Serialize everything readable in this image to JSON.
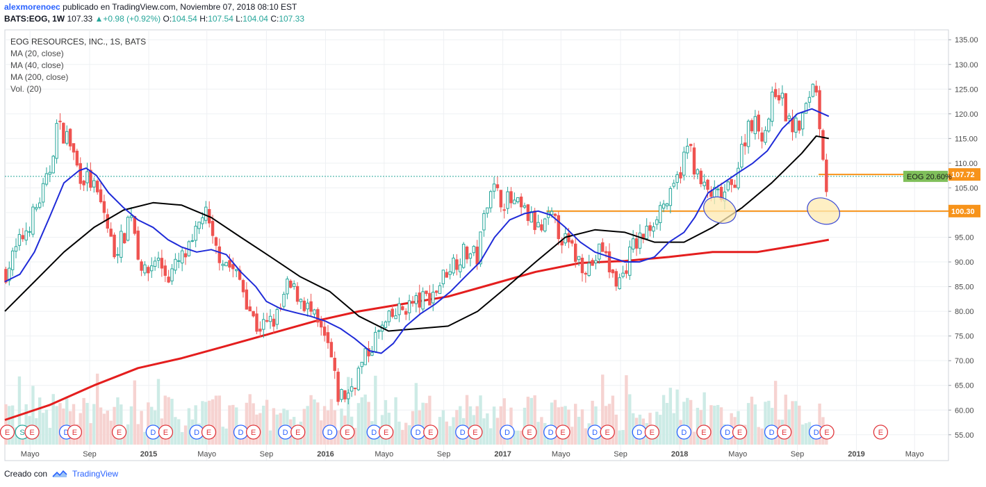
{
  "header": {
    "author": "alexmorenoec",
    "published": "publicado en TradingView.com, Noviembre 07, 2018 08:10 EST",
    "symbol": "BATS:EOG, 1W",
    "last": "107.33",
    "change": "+0.98 (+0.92%)",
    "o_label": "O:",
    "o": "104.54",
    "h_label": "H:",
    "h": "107.54",
    "l_label": "L:",
    "l": "104.04",
    "c_label": "C:",
    "c": "107.33"
  },
  "legend": {
    "title": "EOG RESOURCES, INC., 1S, BATS",
    "ma20": "MA (20, close)",
    "ma40": "MA (40, close)",
    "ma200": "MA (200, close)",
    "vol": "Vol. (20)"
  },
  "footer": {
    "created": "Creado con",
    "brand": "TradingView"
  },
  "colors": {
    "up": "#26a69a",
    "down": "#ef5350",
    "ma20": "#1f2bd8",
    "ma40": "#000000",
    "ma200": "#e41e1e",
    "level": "#f7931a",
    "ellipse_fill": "#fde9b0",
    "ellipse_stroke": "#3c4bd6",
    "vol_up": "#cdebe6",
    "vol_down": "#f6d3d1",
    "event_e": "#e0353b",
    "event_d": "#2962ff",
    "event_s": "#26a69a"
  },
  "chart_data": {
    "type": "candlestick",
    "title": "EOG RESOURCES, INC., 1S, BATS",
    "y_range": [
      53,
      137
    ],
    "x_range": [
      "2014-03-10",
      "2019-07-10"
    ],
    "y_ticks": [
      55,
      60,
      65,
      70,
      75,
      80,
      85,
      90,
      95,
      100,
      105,
      110,
      115,
      120,
      125,
      130,
      135
    ],
    "x_ticks": [
      {
        "label": "Mayo",
        "date": "2014-05-01"
      },
      {
        "label": "Sep",
        "date": "2014-09-01"
      },
      {
        "label": "2015",
        "date": "2015-01-01"
      },
      {
        "label": "Mayo",
        "date": "2015-05-01"
      },
      {
        "label": "Sep",
        "date": "2015-09-01"
      },
      {
        "label": "2016",
        "date": "2016-01-01"
      },
      {
        "label": "Mayo",
        "date": "2016-05-01"
      },
      {
        "label": "Sep",
        "date": "2016-09-01"
      },
      {
        "label": "2017",
        "date": "2017-01-01"
      },
      {
        "label": "Mayo",
        "date": "2017-05-01"
      },
      {
        "label": "Sep",
        "date": "2017-09-01"
      },
      {
        "label": "2018",
        "date": "2018-01-01"
      },
      {
        "label": "Mayo",
        "date": "2018-05-01"
      },
      {
        "label": "Sep",
        "date": "2018-09-01"
      },
      {
        "label": "2019",
        "date": "2019-01-01"
      },
      {
        "label": "Mayo",
        "date": "2019-05-01"
      }
    ],
    "price_anchors": [
      [
        "2014-03-12",
        88
      ],
      [
        "2014-04-10",
        94
      ],
      [
        "2014-05-10",
        100
      ],
      [
        "2014-06-08",
        107
      ],
      [
        "2014-06-25",
        117.5
      ],
      [
        "2014-07-20",
        115
      ],
      [
        "2014-08-10",
        108
      ],
      [
        "2014-09-05",
        106
      ],
      [
        "2014-10-01",
        100
      ],
      [
        "2014-10-20",
        92
      ],
      [
        "2014-11-10",
        95
      ],
      [
        "2014-11-25",
        101
      ],
      [
        "2014-12-10",
        92
      ],
      [
        "2014-12-25",
        87
      ],
      [
        "2015-01-15",
        91
      ],
      [
        "2015-02-10",
        87
      ],
      [
        "2015-03-05",
        90
      ],
      [
        "2015-04-01",
        93
      ],
      [
        "2015-04-25",
        101
      ],
      [
        "2015-05-15",
        93
      ],
      [
        "2015-06-10",
        90
      ],
      [
        "2015-07-10",
        86
      ],
      [
        "2015-08-10",
        77
      ],
      [
        "2015-09-01",
        77
      ],
      [
        "2015-09-25",
        79
      ],
      [
        "2015-10-15",
        85
      ],
      [
        "2015-11-10",
        83
      ],
      [
        "2015-12-05",
        79
      ],
      [
        "2016-01-10",
        72
      ],
      [
        "2016-01-25",
        63
      ],
      [
        "2016-02-15",
        63
      ],
      [
        "2016-03-10",
        68
      ],
      [
        "2016-04-15",
        75
      ],
      [
        "2016-05-20",
        79
      ],
      [
        "2016-06-15",
        81
      ],
      [
        "2016-07-15",
        82
      ],
      [
        "2016-08-15",
        84
      ],
      [
        "2016-09-10",
        89
      ],
      [
        "2016-10-15",
        92
      ],
      [
        "2016-11-10",
        91
      ],
      [
        "2016-12-05",
        106
      ],
      [
        "2016-12-25",
        103
      ],
      [
        "2017-01-20",
        102
      ],
      [
        "2017-02-25",
        99
      ],
      [
        "2017-03-20",
        96
      ],
      [
        "2017-04-10",
        99
      ],
      [
        "2017-05-10",
        94
      ],
      [
        "2017-06-10",
        90
      ],
      [
        "2017-07-01",
        89
      ],
      [
        "2017-07-25",
        93
      ],
      [
        "2017-08-15",
        87
      ],
      [
        "2017-09-01",
        86
      ],
      [
        "2017-09-25",
        93
      ],
      [
        "2017-10-25",
        96
      ],
      [
        "2017-11-20",
        101
      ],
      [
        "2017-12-15",
        103
      ],
      [
        "2018-01-20",
        114
      ],
      [
        "2018-02-10",
        106
      ],
      [
        "2018-03-01",
        104
      ],
      [
        "2018-03-25",
        103
      ],
      [
        "2018-04-20",
        105
      ],
      [
        "2018-05-25",
        119
      ],
      [
        "2018-06-25",
        116
      ],
      [
        "2018-07-20",
        126
      ],
      [
        "2018-08-15",
        118
      ],
      [
        "2018-09-01",
        117
      ],
      [
        "2018-09-20",
        121
      ],
      [
        "2018-10-05",
        128
      ],
      [
        "2018-10-20",
        116
      ],
      [
        "2018-11-01",
        104.5
      ],
      [
        "2018-11-05",
        107.33
      ]
    ],
    "ma20": [
      [
        "2014-03-10",
        86
      ],
      [
        "2014-04-10",
        87.5
      ],
      [
        "2014-05-10",
        92
      ],
      [
        "2014-06-10",
        99
      ],
      [
        "2014-07-10",
        106
      ],
      [
        "2014-08-10",
        108.5
      ],
      [
        "2014-08-25",
        109
      ],
      [
        "2014-09-15",
        107.5
      ],
      [
        "2014-10-10",
        104
      ],
      [
        "2014-11-10",
        101
      ],
      [
        "2014-12-10",
        98.5
      ],
      [
        "2015-01-10",
        97
      ],
      [
        "2015-02-10",
        94.5
      ],
      [
        "2015-03-10",
        93
      ],
      [
        "2015-04-10",
        92
      ],
      [
        "2015-05-10",
        92.5
      ],
      [
        "2015-06-10",
        91.5
      ],
      [
        "2015-07-10",
        88
      ],
      [
        "2015-08-10",
        85
      ],
      [
        "2015-09-01",
        82
      ],
      [
        "2015-10-01",
        80.5
      ],
      [
        "2015-11-01",
        79.7
      ],
      [
        "2015-12-01",
        79
      ],
      [
        "2016-01-01",
        78
      ],
      [
        "2016-02-01",
        76.5
      ],
      [
        "2016-03-01",
        74.5
      ],
      [
        "2016-04-01",
        72
      ],
      [
        "2016-04-25",
        71.5
      ],
      [
        "2016-05-20",
        73.5
      ],
      [
        "2016-06-15",
        77
      ],
      [
        "2016-07-15",
        79.5
      ],
      [
        "2016-08-15",
        81.5
      ],
      [
        "2016-09-15",
        84
      ],
      [
        "2016-10-15",
        87
      ],
      [
        "2016-11-15",
        90
      ],
      [
        "2016-12-15",
        95
      ],
      [
        "2017-01-15",
        98.5
      ],
      [
        "2017-02-15",
        99.8
      ],
      [
        "2017-03-15",
        100.3
      ],
      [
        "2017-04-10",
        99.5
      ],
      [
        "2017-05-10",
        97
      ],
      [
        "2017-06-10",
        94
      ],
      [
        "2017-07-10",
        92
      ],
      [
        "2017-08-10",
        91
      ],
      [
        "2017-09-10",
        90
      ],
      [
        "2017-10-10",
        90
      ],
      [
        "2017-11-10",
        91
      ],
      [
        "2017-12-10",
        94
      ],
      [
        "2018-01-10",
        96
      ],
      [
        "2018-02-01",
        99
      ],
      [
        "2018-03-01",
        104
      ],
      [
        "2018-04-01",
        106
      ],
      [
        "2018-05-01",
        108
      ],
      [
        "2018-06-01",
        110
      ],
      [
        "2018-07-01",
        112.5
      ],
      [
        "2018-08-01",
        117
      ],
      [
        "2018-09-01",
        120
      ],
      [
        "2018-10-01",
        121
      ],
      [
        "2018-11-05",
        119.5
      ]
    ],
    "ma40": [
      [
        "2014-03-10",
        80
      ],
      [
        "2014-05-10",
        86
      ],
      [
        "2014-07-10",
        92
      ],
      [
        "2014-09-10",
        97
      ],
      [
        "2014-11-10",
        100.5
      ],
      [
        "2015-01-10",
        102
      ],
      [
        "2015-03-10",
        101.5
      ],
      [
        "2015-05-10",
        99
      ],
      [
        "2015-07-10",
        95
      ],
      [
        "2015-09-10",
        91
      ],
      [
        "2015-11-10",
        87
      ],
      [
        "2016-01-10",
        84
      ],
      [
        "2016-03-10",
        79
      ],
      [
        "2016-05-10",
        76
      ],
      [
        "2016-07-10",
        76.5
      ],
      [
        "2016-09-10",
        77
      ],
      [
        "2016-11-10",
        80
      ],
      [
        "2017-01-10",
        85
      ],
      [
        "2017-03-10",
        90
      ],
      [
        "2017-05-10",
        95
      ],
      [
        "2017-07-10",
        96.5
      ],
      [
        "2017-09-10",
        96
      ],
      [
        "2017-11-10",
        94
      ],
      [
        "2018-01-10",
        94
      ],
      [
        "2018-03-10",
        97
      ],
      [
        "2018-05-10",
        101
      ],
      [
        "2018-07-10",
        106
      ],
      [
        "2018-09-10",
        112
      ],
      [
        "2018-10-10",
        115.5
      ],
      [
        "2018-11-05",
        115
      ]
    ],
    "ma200": [
      [
        "2014-03-10",
        58
      ],
      [
        "2014-06-10",
        61
      ],
      [
        "2014-09-10",
        65
      ],
      [
        "2014-12-10",
        68.5
      ],
      [
        "2015-03-10",
        70.5
      ],
      [
        "2015-06-10",
        73
      ],
      [
        "2015-09-10",
        75.5
      ],
      [
        "2015-12-10",
        78
      ],
      [
        "2016-03-10",
        80
      ],
      [
        "2016-06-10",
        81.5
      ],
      [
        "2016-09-10",
        83
      ],
      [
        "2016-12-10",
        85.5
      ],
      [
        "2017-03-10",
        88
      ],
      [
        "2017-06-10",
        89.8
      ],
      [
        "2017-09-10",
        90.2
      ],
      [
        "2017-12-10",
        91
      ],
      [
        "2018-03-10",
        92
      ],
      [
        "2018-06-10",
        92
      ],
      [
        "2018-09-10",
        93.5
      ],
      [
        "2018-11-05",
        94.5
      ]
    ],
    "levels": [
      {
        "value": 100.3,
        "label": "100.30",
        "start": "2017-04-01"
      },
      {
        "value": 107.72,
        "label": "107.72",
        "start": "2018-10-15"
      }
    ],
    "price_tag": {
      "label": "EOG 20.60%",
      "value": 107.33
    },
    "ellipses": [
      {
        "date": "2018-03-25",
        "value": 100.5
      },
      {
        "date": "2018-10-25",
        "value": 100.3
      }
    ],
    "events": [
      {
        "t": "E",
        "d": "2014-03-15"
      },
      {
        "t": "S",
        "d": "2014-04-15"
      },
      {
        "t": "E",
        "d": "2014-05-05"
      },
      {
        "t": "D",
        "d": "2014-07-15"
      },
      {
        "t": "E",
        "d": "2014-08-01"
      },
      {
        "t": "E",
        "d": "2014-11-01"
      },
      {
        "t": "D",
        "d": "2015-01-10"
      },
      {
        "t": "E",
        "d": "2015-02-05"
      },
      {
        "t": "D",
        "d": "2015-04-10"
      },
      {
        "t": "E",
        "d": "2015-05-05"
      },
      {
        "t": "D",
        "d": "2015-07-10"
      },
      {
        "t": "E",
        "d": "2015-08-05"
      },
      {
        "t": "D",
        "d": "2015-10-10"
      },
      {
        "t": "E",
        "d": "2015-11-05"
      },
      {
        "t": "D",
        "d": "2016-01-10"
      },
      {
        "t": "E",
        "d": "2016-02-15"
      },
      {
        "t": "D",
        "d": "2016-04-10"
      },
      {
        "t": "E",
        "d": "2016-05-05"
      },
      {
        "t": "D",
        "d": "2016-07-10"
      },
      {
        "t": "E",
        "d": "2016-08-05"
      },
      {
        "t": "D",
        "d": "2016-10-10"
      },
      {
        "t": "E",
        "d": "2016-11-05"
      },
      {
        "t": "D",
        "d": "2017-01-10"
      },
      {
        "t": "E",
        "d": "2017-02-25"
      },
      {
        "t": "D",
        "d": "2017-04-10"
      },
      {
        "t": "E",
        "d": "2017-05-05"
      },
      {
        "t": "D",
        "d": "2017-07-10"
      },
      {
        "t": "E",
        "d": "2017-08-05"
      },
      {
        "t": "D",
        "d": "2017-10-10"
      },
      {
        "t": "E",
        "d": "2017-11-05"
      },
      {
        "t": "D",
        "d": "2018-01-10"
      },
      {
        "t": "E",
        "d": "2018-02-20"
      },
      {
        "t": "D",
        "d": "2018-04-10"
      },
      {
        "t": "E",
        "d": "2018-05-05"
      },
      {
        "t": "D",
        "d": "2018-07-10"
      },
      {
        "t": "E",
        "d": "2018-08-05"
      },
      {
        "t": "D",
        "d": "2018-10-10"
      },
      {
        "t": "E",
        "d": "2018-11-01"
      },
      {
        "t": "E",
        "d": "2019-02-20"
      }
    ]
  }
}
